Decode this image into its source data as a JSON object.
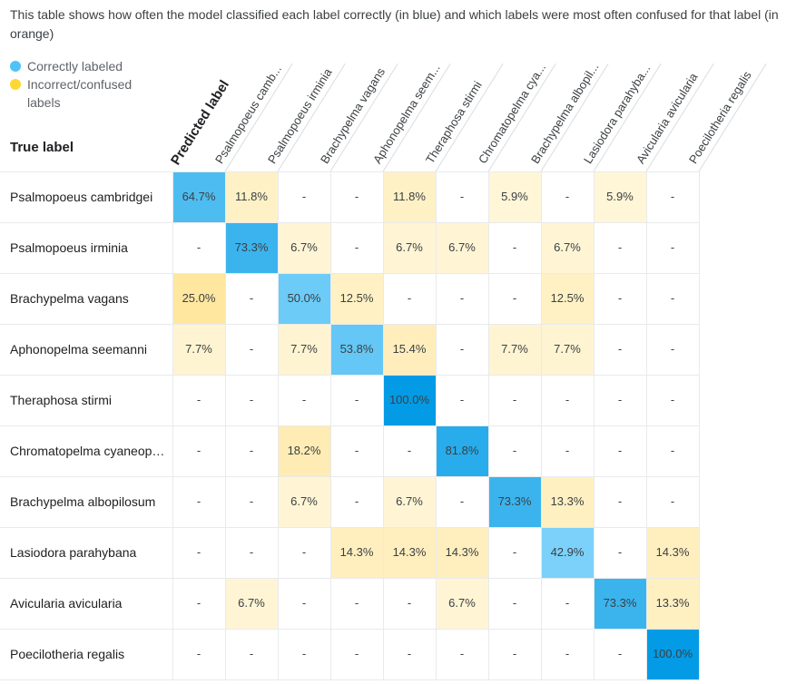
{
  "description": "This table shows how often the model classified each label correctly (in blue) and which labels were most often confused for that label (in orange)",
  "legend": {
    "correct": {
      "label": "Correctly labeled",
      "color": "#4fc3f7"
    },
    "incorrect": {
      "label": "Incorrect/confused labels",
      "color": "#fdd835"
    }
  },
  "corner_label": "True label",
  "predicted_label": "Predicted label",
  "chart_data": {
    "type": "heatmap",
    "row_axis_label": "True label",
    "column_axis_label": "Predicted label",
    "columns": [
      "Psalmopoeus camb...",
      "Psalmopoeus irminia",
      "Brachypelma vagans",
      "Aphonopelma seem...",
      "Theraphosa stirmi",
      "Chromatopelma cya...",
      "Brachypelma albopil...",
      "Lasiodora parahyba...",
      "Avicularia avicularia",
      "Poecilotheria regalis"
    ],
    "rows": [
      "Psalmopoeus cambridgei",
      "Psalmopoeus irminia",
      "Brachypelma vagans",
      "Aphonopelma seemanni",
      "Theraphosa stirmi",
      "Chromatopelma cyaneopu...",
      "Brachypelma albopilosum",
      "Lasiodora parahybana",
      "Avicularia avicularia",
      "Poecilotheria regalis"
    ],
    "values": [
      [
        64.7,
        11.8,
        null,
        null,
        11.8,
        null,
        5.9,
        null,
        5.9,
        null
      ],
      [
        null,
        73.3,
        6.7,
        null,
        6.7,
        6.7,
        null,
        6.7,
        null,
        null
      ],
      [
        25.0,
        null,
        50.0,
        12.5,
        null,
        null,
        null,
        12.5,
        null,
        null
      ],
      [
        7.7,
        null,
        7.7,
        53.8,
        15.4,
        null,
        7.7,
        7.7,
        null,
        null
      ],
      [
        null,
        null,
        null,
        null,
        100.0,
        null,
        null,
        null,
        null,
        null
      ],
      [
        null,
        null,
        18.2,
        null,
        null,
        81.8,
        null,
        null,
        null,
        null
      ],
      [
        null,
        null,
        6.7,
        null,
        6.7,
        null,
        73.3,
        13.3,
        null,
        null
      ],
      [
        null,
        null,
        null,
        14.3,
        14.3,
        14.3,
        null,
        42.9,
        null,
        14.3
      ],
      [
        null,
        6.7,
        null,
        null,
        null,
        6.7,
        null,
        null,
        73.3,
        13.3
      ],
      [
        null,
        null,
        null,
        null,
        null,
        null,
        null,
        null,
        null,
        100.0
      ]
    ],
    "empty_symbol": "-",
    "value_suffix": "%"
  }
}
